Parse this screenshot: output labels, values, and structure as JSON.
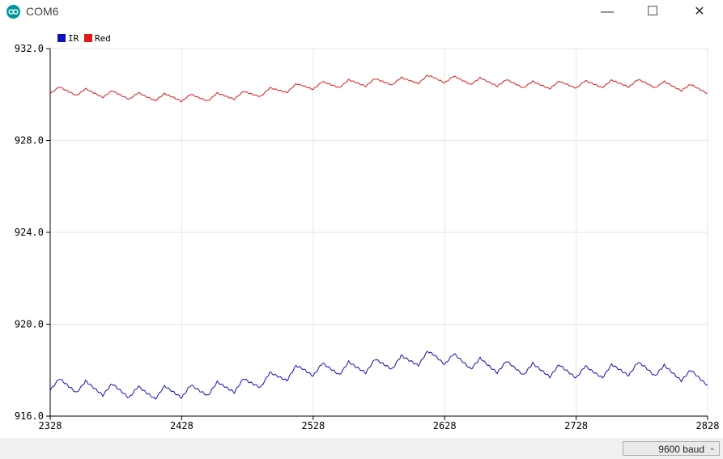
{
  "window": {
    "title": "COM6"
  },
  "window_controls": {
    "minimize": "—",
    "maximize": "☐",
    "close": "✕"
  },
  "status_bar": {
    "baud_rate": "9600 baud"
  },
  "colors": {
    "ir": "#1010c0",
    "red": "#e01818",
    "grid": "#e6e6e6",
    "axis": "#000000"
  },
  "chart_data": {
    "type": "line",
    "x_ticks": [
      "2328",
      "2428",
      "2528",
      "2628",
      "2728",
      "2828"
    ],
    "y_ticks": [
      "932.0",
      "928.0",
      "924.0",
      "920.0",
      "916.0"
    ],
    "xlim": [
      2328,
      2828
    ],
    "ylim": [
      916.0,
      932.0
    ],
    "grid": true,
    "legend_position": "top-left",
    "series": [
      {
        "name": "IR",
        "color": "#1010c0",
        "base": 917.8,
        "trend": [
          [
            2328,
            917.4
          ],
          [
            2400,
            917.0
          ],
          [
            2440,
            917.1
          ],
          [
            2480,
            917.4
          ],
          [
            2520,
            918.0
          ],
          [
            2560,
            918.1
          ],
          [
            2600,
            918.4
          ],
          [
            2620,
            918.6
          ],
          [
            2660,
            918.2
          ],
          [
            2700,
            918.0
          ],
          [
            2740,
            917.9
          ],
          [
            2780,
            918.1
          ],
          [
            2828,
            917.6
          ]
        ]
      },
      {
        "name": "Red",
        "color": "#e01818",
        "base": 930.0,
        "trend": [
          [
            2328,
            930.2
          ],
          [
            2400,
            929.9
          ],
          [
            2440,
            929.85
          ],
          [
            2480,
            930.0
          ],
          [
            2520,
            930.35
          ],
          [
            2560,
            930.5
          ],
          [
            2600,
            930.6
          ],
          [
            2620,
            930.7
          ],
          [
            2660,
            930.55
          ],
          [
            2700,
            930.4
          ],
          [
            2740,
            930.45
          ],
          [
            2780,
            930.5
          ],
          [
            2828,
            930.2
          ]
        ]
      }
    ],
    "oscillation": {
      "period": 20,
      "ir_amplitude": 0.55,
      "red_amplitude": 0.32
    }
  }
}
